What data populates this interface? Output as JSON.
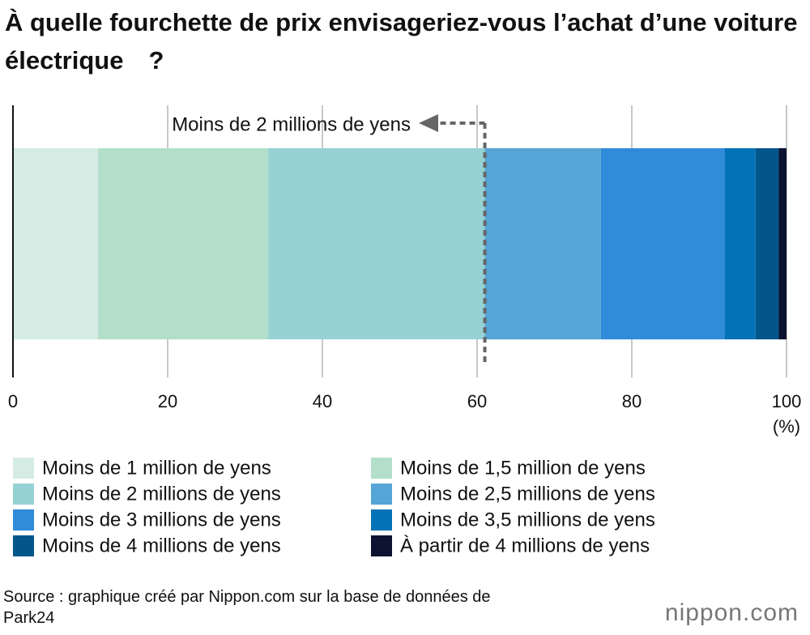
{
  "chart_data": {
    "type": "stacked-bar-horizontal",
    "title": "À quelle fourchette de prix envisageriez-vous l’achat d’une voiture électrique　?",
    "series": [
      {
        "name": "Moins de 1 million de yens",
        "color": "#d4ece3",
        "values": [
          11
        ]
      },
      {
        "name": "Moins de 1,5 million de yens",
        "color": "#b3dfca",
        "values": [
          22
        ]
      },
      {
        "name": "Moins de 2 millions de yens",
        "color": "#96d1d4",
        "values": [
          28
        ]
      },
      {
        "name": "Moins de 2,5 millions de yens",
        "color": "#56a5d6",
        "values": [
          15
        ]
      },
      {
        "name": "Moins de 3 millions de yens",
        "color": "#308bd8",
        "values": [
          16
        ]
      },
      {
        "name": "Moins de 3,5 millions de yens",
        "color": "#0472b6",
        "values": [
          4
        ]
      },
      {
        "name": "Moins de 4 millions de yens",
        "color": "#03568a",
        "values": [
          3
        ]
      },
      {
        "name": "À partir de 4 millions de yens",
        "color": "#0b1330",
        "values": [
          1
        ]
      }
    ],
    "xlim": [
      0,
      100
    ],
    "xticks": [
      0,
      20,
      40,
      60,
      80,
      100
    ],
    "xlabel": "(%)",
    "grid": true,
    "annotation": "Moins de 2 millions de yens",
    "source": "Source : graphique créé par Nippon.com sur la base de données de Park24",
    "logo": "nippon.com"
  }
}
